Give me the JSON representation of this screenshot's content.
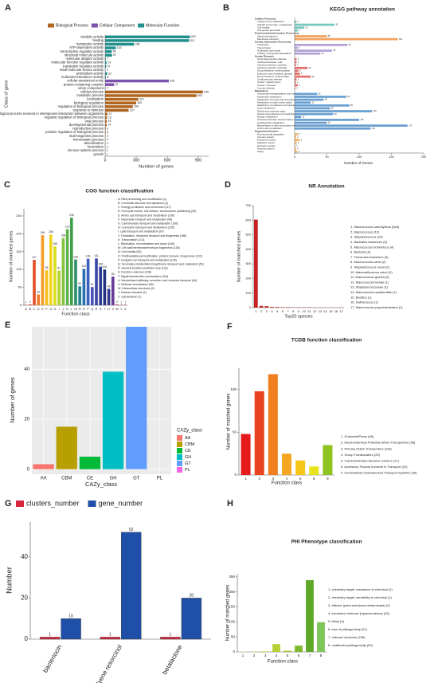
{
  "chart_data": [
    {
      "panel": "A",
      "type": "bar",
      "horizontal": true,
      "legend": "top",
      "data_labels": true,
      "xlabel": "Number of genes",
      "ylabel": "Class of gene",
      "xlim": [
        0,
        1000
      ],
      "xticks": [
        0,
        300,
        600,
        900
      ],
      "series": [
        {
          "name": "Molecular Function",
          "color": "#21908c",
          "categories": [
            "catalytic activity",
            "binding",
            "transporter activity",
            "ATP-dependent activity",
            "transcription regulator activity",
            "structural molecule activity",
            "molecular adaptor activity",
            "molecular function regulator activity",
            "translation regulator activity",
            "small molecule sensor activity",
            "antioxidant activity",
            "molecular transducer activity"
          ],
          "values": [
            820,
            812,
            280,
            103,
            64,
            67,
            7,
            14,
            11,
            3,
            20,
            8
          ]
        },
        {
          "name": "Cellular Component",
          "color": "#7b52ae",
          "categories": [
            "cellular anatomical entity",
            "protein-containing complex",
            "virion component"
          ],
          "values": [
            615,
            87,
            4
          ]
        },
        {
          "name": "Biological Process",
          "color": "#b0651e",
          "categories": [
            "cellular process",
            "metabolic process",
            "localization",
            "biological regulation",
            "regulation of biological process",
            "response to stimulus",
            "biological process involved in interspecies interaction between organisms",
            "negative regulation of biological process",
            "viral process",
            "developmental process",
            "reproductive process",
            "positive regulation of biological process",
            "multi-organism process",
            "homeostatic process",
            "detoxification",
            "locomotion",
            "immune system process",
            "growth"
          ],
          "values": [
            945,
            883,
            321,
            300,
            268,
            227,
            22,
            18,
            16,
            14,
            6,
            5,
            3,
            3,
            3,
            2,
            2,
            1
          ]
        }
      ]
    },
    {
      "panel": "B",
      "type": "bar",
      "horizontal": true,
      "data_labels": true,
      "title": "KEGG pathway annotation",
      "xlabel": "Number of Genes",
      "xlim": [
        0,
        200
      ],
      "xticks": [
        0,
        50,
        100,
        150,
        200
      ],
      "series": [
        {
          "name": "Cellular Processes",
          "color": "#76c7bf",
          "categories": [
            "Transport and catabolism",
            "Cellular community - prokaryotes",
            "Cell motility",
            "Cell growth and death"
          ],
          "values": [
            3,
            62,
            15,
            5
          ]
        },
        {
          "name": "Environmental Information Processing",
          "color": "#f0a35e",
          "categories": [
            "Signal transduction",
            "Membrane transport"
          ],
          "values": [
            50,
            160
          ]
        },
        {
          "name": "Genetic Information Processing",
          "color": "#b3a2d6",
          "categories": [
            "Translation",
            "Transcription",
            "Replication and repair",
            "Folding, sorting and degradation"
          ],
          "values": [
            82,
            5,
            58,
            40
          ]
        },
        {
          "name": "Human Diseases",
          "color": "#e3706c",
          "categories": [
            "Neurodegenerative disease",
            "Infectious disease: viral",
            "Infectious disease: parasitic",
            "Infectious disease: bacterial",
            "Drug resistance: antineoplastic",
            "Endocrine and metabolic disease",
            "Drug resistance: antimicrobial",
            "Cardiovascular disease",
            "Cancer: specific types",
            "Cancer: overview",
            "Immune disease"
          ],
          "values": [
            3,
            3,
            2,
            20,
            6,
            8,
            25,
            3,
            2,
            5,
            1
          ]
        },
        {
          "name": "Metabolism",
          "color": "#6a9fd0",
          "categories": [
            "Xenobiotics biodegradation and metabolism",
            "Nucleotide metabolism",
            "Metabolism of terpenoids and polyketides",
            "Metabolism of other amino acids",
            "Metabolism of cofactors and vitamins",
            "Lipid metabolism",
            "Global and overview maps",
            "Glycan biosynthesis and metabolism",
            "Energy metabolism",
            "Chemical structure transformation maps",
            "Carbohydrate metabolism",
            "Biosynthesis of other secondary metabolites",
            "Amino acid metabolism"
          ],
          "values": [
            35,
            80,
            45,
            25,
            85,
            55,
            120,
            60,
            10,
            100,
            50,
            175,
            118
          ]
        },
        {
          "name": "Organismal Systems",
          "color": "#f2b45f",
          "categories": [
            "Environmental adaptation",
            "Immune system",
            "Endocrine system",
            "Digestive system",
            "Excretory system",
            "Nervous system",
            "Aging"
          ],
          "values": [
            5,
            2,
            8,
            3,
            1,
            2,
            4
          ]
        }
      ]
    },
    {
      "panel": "C",
      "type": "bar",
      "data_labels": true,
      "title": "COG function classification",
      "xlabel": "Function class",
      "ylabel": "Number of matched genes",
      "ylim": [
        0,
        270
      ],
      "yticks": [
        0,
        50,
        100,
        150,
        200,
        250
      ],
      "categories": [
        "A",
        "B",
        "C",
        "D",
        "E",
        "F",
        "G",
        "H",
        "I",
        "J",
        "K",
        "L",
        "M",
        "N",
        "O",
        "P",
        "Q",
        "R",
        "S",
        "T",
        "U",
        "V",
        "W",
        "Y",
        "Z"
      ],
      "values": [
        1,
        2,
        127,
        30,
        196,
        98,
        198,
        165,
        97,
        188,
        213,
        245,
        128,
        53,
        102,
        130,
        51,
        131,
        108,
        100,
        46,
        80,
        2,
        1,
        1
      ],
      "colors": [
        "#b2182b",
        "#d6301f",
        "#e4502a",
        "#ef7a2b",
        "#f59b26",
        "#f7bd1e",
        "#f2d31b",
        "#d9de1f",
        "#b2d235",
        "#86c341",
        "#5fb14a",
        "#3f9f4a",
        "#2c8f6a",
        "#21808f",
        "#2a6fb0",
        "#3a5fbe",
        "#4a52b8",
        "#3b47a6",
        "#2d3c93",
        "#25327f",
        "#3a3a8c",
        "#6a3d9a",
        "#c2185b",
        "#8e1b3b",
        "#5a1030"
      ],
      "descriptions": [
        "A: RNA processing and modification (1)",
        "B: Chromatin structure and dynamics (2)",
        "C: Energy production and conversion (127)",
        "D: Cell cycle control, cell division, chromosome partitioning (30)",
        "E: Amino acid transport and metabolism (196)",
        "F: Nucleotide transport and metabolism (98)",
        "G: Carbohydrate transport and metabolism (198)",
        "H: Coenzyme transport and metabolism (165)",
        "I: Lipid transport and metabolism (97)",
        "J: Translation, ribosomal structure and biogenesis (188)",
        "K: Transcription (213)",
        "L: Replication, recombination and repair (245)",
        "M: Cell wall/membrane/envelope biogenesis (128)",
        "N: Cell motility (53)",
        "O: Posttranslational modification, protein turnover, chaperones (102)",
        "P: Inorganic ion transport and metabolism (130)",
        "Q: Secondary metabolites biosynthesis, transport and catabolism (51)",
        "R: General function prediction only (131)",
        "S: Function unknown (108)",
        "T: Signal transduction mechanisms (100)",
        "U: Intracellular trafficking, secretion, and vesicular transport (46)",
        "V: Defense mechanisms (80)",
        "W: Extracellular structures (2)",
        "Y: Nuclear structure (1)",
        "Z: Cytoskeleton (1)"
      ]
    },
    {
      "panel": "D",
      "type": "bar",
      "title": "NR Annotation",
      "xlabel": "Top20 species",
      "ylabel": "Number of matched genes",
      "ylim": [
        0,
        700
      ],
      "yticks": [
        0,
        100,
        200,
        300,
        400,
        500,
        600,
        700
      ],
      "color": "#c62222",
      "categories": [
        "1",
        "2",
        "3",
        "4",
        "5",
        "6",
        "7",
        "8",
        "9",
        "10",
        "11",
        "12",
        "13",
        "14",
        "15",
        "16",
        "17"
      ],
      "values": [
        604,
        12,
        10,
        5,
        4,
        3,
        3,
        2,
        2,
        2,
        2,
        1,
        1,
        1,
        1,
        1,
        1
      ],
      "descriptions": [
        "1. Macrococcus caseolyticus (604)",
        "2. Macrococcus (12)",
        "3. Staphylococcus (10)",
        "4. Bacillales bacterium (5)",
        "5. Macrococcus bohemicus (4)",
        "6. Bacteria (3)",
        "7. Firmicutes bacterium (3)",
        "8. Macrococcus canis (2)",
        "9. Staphylococcus sciuri (2)",
        "10. Mammaliicoccus sciuri (2)",
        "11. Macrococcus goetzii (2)",
        "12. Macrococcus lamae (1)",
        "13. Staphylococcaceae (1)",
        "14. Macrococcus epidermidis (1)",
        "15. Bacillus (1)",
        "16. Salinicoccus (1)",
        "17. Macrococcus psychrotolerans (1)"
      ]
    },
    {
      "panel": "E",
      "type": "bar",
      "xlabel": "CAZy_class",
      "ylabel": "Number of genes",
      "legend_title": "CAZy_class",
      "grid": true,
      "panel_background": "#ebebeb",
      "ylim": [
        -2,
        57
      ],
      "yticks": [
        0,
        20,
        40
      ],
      "categories": [
        "AA",
        "CBM",
        "CE",
        "GH",
        "GT",
        "PL"
      ],
      "values": [
        2,
        17,
        5,
        39,
        57,
        0
      ],
      "colors": [
        "#f8766d",
        "#b79f00",
        "#00ba38",
        "#00bfc4",
        "#619cff",
        "#f564e3"
      ]
    },
    {
      "panel": "F",
      "type": "bar",
      "title": "TCDB function classification",
      "xlabel": "Function class",
      "ylabel": "Number of matched genes",
      "ylim": [
        0,
        125
      ],
      "yticks": [
        0,
        50,
        100
      ],
      "categories": [
        "1",
        "2",
        "3",
        "4",
        "5",
        "6",
        "9"
      ],
      "values": [
        48,
        98,
        118,
        25,
        17,
        10,
        35
      ],
      "colors": [
        "#e41a1c",
        "#e8431f",
        "#f07f1f",
        "#f5a623",
        "#f5c518",
        "#e8e31a",
        "#8fc31f"
      ],
      "descriptions": [
        "1. Channels/Pores (48)",
        "2. Electrochemical Potential-driven Transporters (98)",
        "3. Primary Active Transporters (118)",
        "4. Group Translocators (25)",
        "5. Transmembrane Electron Carriers (17)",
        "6. Accessory Factors Involved in Transport (10)",
        "9. Incompletely Characterized Transport Systems (35)"
      ]
    },
    {
      "panel": "G",
      "type": "bar",
      "data_labels": true,
      "ylabel": "Number",
      "ylim": [
        0,
        57
      ],
      "yticks": [
        0,
        20,
        40
      ],
      "categories": [
        "bacteriocin",
        "arylpolyene resorcinol",
        "betalactone"
      ],
      "series": [
        {
          "name": "clusters_number",
          "color": "#d7263d",
          "values": [
            1,
            1,
            1
          ]
        },
        {
          "name": "gene_number",
          "color": "#1f4fa8",
          "values": [
            10,
            52,
            20
          ]
        }
      ]
    },
    {
      "panel": "H",
      "type": "bar",
      "title": "PHI Phenotype classification",
      "xlabel": "Function class",
      "ylabel": "Number of matched genes",
      "ylim": [
        0,
        260
      ],
      "yticks": [
        0,
        50,
        100,
        150,
        200,
        250
      ],
      "categories": [
        "1",
        "2",
        "3",
        "4",
        "5",
        "6",
        "7",
        "8"
      ],
      "values": [
        1,
        1,
        2,
        26,
        4,
        21,
        239,
        99
      ],
      "colors": [
        "#f2e85c",
        "#e0e04a",
        "#cfd83f",
        "#b7cf35",
        "#9fc530",
        "#7fb82c",
        "#5fa82a",
        "#7fc75a"
      ],
      "descriptions": [
        "1. chemistry target: resistance to chemical (1)",
        "2. chemistry target: sensitivity to chemical (1)",
        "3. effector (plant avirulence determinant) (2)",
        "4. increased virulence (hypervirulence) (26)",
        "5. lethal (4)",
        "6. loss of pathogenicity (21)",
        "7. reduced virulence (239)",
        "8. unaffected pathogenicity (99)"
      ]
    }
  ]
}
